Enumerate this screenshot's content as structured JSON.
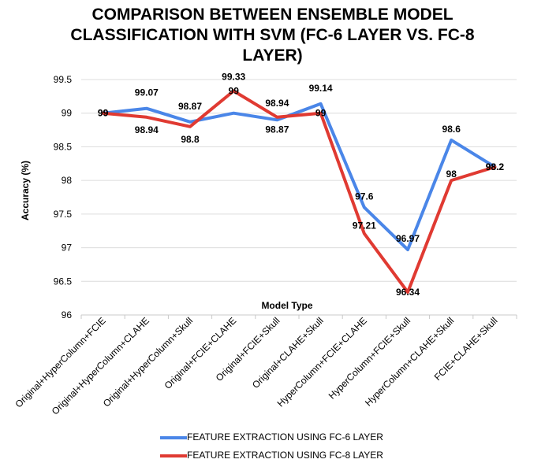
{
  "chart_data": {
    "type": "line",
    "title_lines": [
      "COMPARISON BETWEEN ENSEMBLE MODEL",
      "CLASSIFICATION WITH SVM (FC-6 LAYER VS. FC-8",
      "LAYER)"
    ],
    "xlabel": "Model Type",
    "ylabel": "Accuracy (%)",
    "ylim": [
      96,
      99.5
    ],
    "y_ticks": [
      "96",
      "96.5",
      "97",
      "97.5",
      "98",
      "98.5",
      "99",
      "99.5"
    ],
    "grid": true,
    "legend_position": "bottom",
    "categories": [
      "Original+HyperColumn+FCIE",
      "Original+HyperColumn+CLAHE",
      "Original+HyperColumn+Skull",
      "Original+FCIE+CLAHE",
      "Original+FCIE+Skull",
      "Original+CLAHE+Skull",
      "HyperColumn+FCIE+CLAHE",
      "HyperColumn+FCIE+Skull",
      "HyperColumn+CLAHE+Skull",
      "FCIE+CLAHE+Skull"
    ],
    "series": [
      {
        "name": "FEATURE EXTRACTION USING FC-6 LAYER",
        "color": "#4a86e8",
        "values": [
          99,
          99.07,
          98.87,
          99,
          98.9,
          99.14,
          97.6,
          96.97,
          98.6,
          98.2
        ],
        "labels": [
          "99",
          "99.07",
          "98.87",
          "99",
          "",
          "99.14",
          "97.6",
          "96.97",
          "98.6",
          "98.2"
        ]
      },
      {
        "name": "FEATURE EXTRACTION USING FC-8 LAYER",
        "color": "#e03a32",
        "values": [
          99,
          98.94,
          98.8,
          99.33,
          98.94,
          99,
          97.21,
          96.34,
          98,
          98.2
        ],
        "labels": [
          "99",
          "98.94",
          "98.8",
          "99.33",
          "98.94",
          "99",
          "97.21",
          "96.34",
          "98",
          "98.2"
        ]
      }
    ],
    "extra_labels": [
      "98.87"
    ]
  }
}
